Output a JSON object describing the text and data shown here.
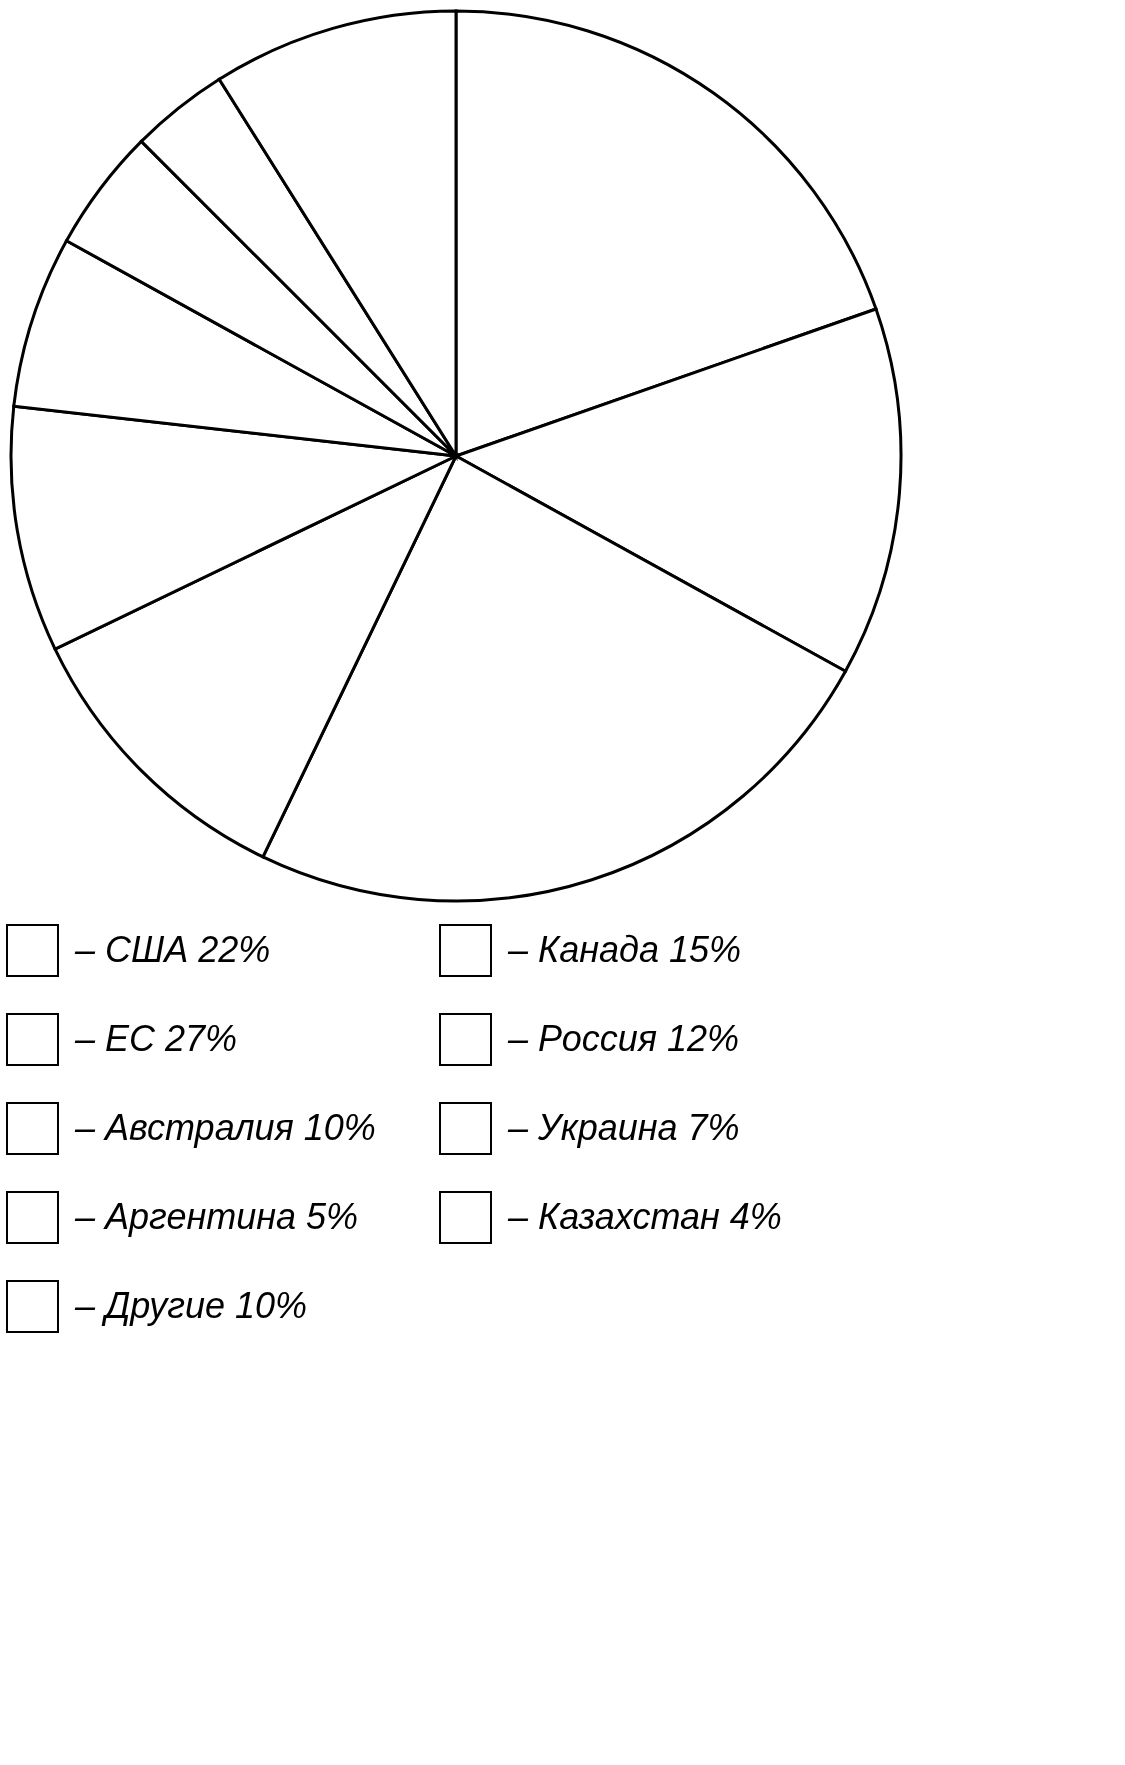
{
  "chart_data": {
    "type": "pie",
    "categories": [
      "– США 22%",
      "– Канада 15%",
      "– ЕС 27%",
      "– Россия 12%",
      "– Австралия 10%",
      "– Украина 7%",
      "– Аргентина 5%",
      "– Казахстан 4%",
      "– Другие 10%"
    ],
    "values": [
      22,
      15,
      27,
      12,
      10,
      7,
      5,
      4,
      10
    ],
    "colors": [
      "#ffffff",
      "#ffffff",
      "#ffffff",
      "#ffffff",
      "#ffffff",
      "#ffffff",
      "#ffffff",
      "#ffffff",
      "#ffffff"
    ],
    "legend": "bottom"
  }
}
